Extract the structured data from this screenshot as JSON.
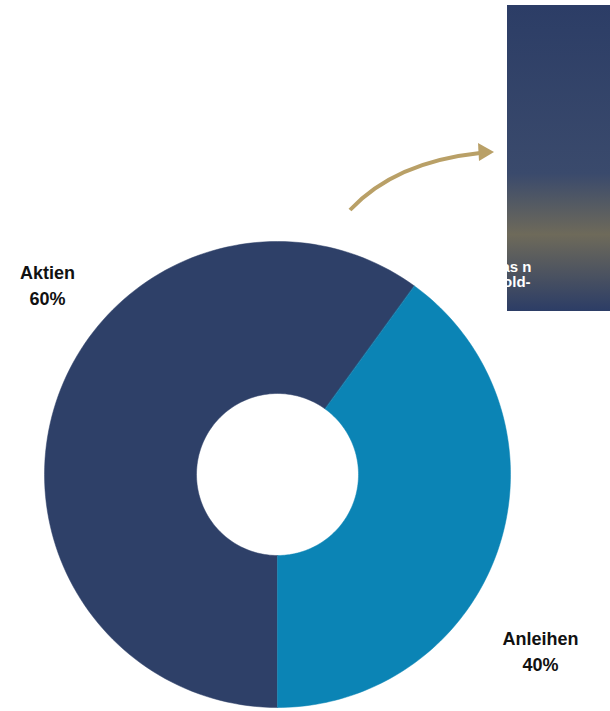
{
  "chart_data": {
    "type": "donut",
    "categories": [
      "Aktien",
      "Anleihen"
    ],
    "values": [
      60,
      40
    ],
    "value_labels": [
      "60%",
      "40%"
    ],
    "colors": [
      "#2e4068",
      "#0b84b5"
    ],
    "data_labels": true,
    "annotations": [
      "Das n",
      "Gold-"
    ]
  }
}
